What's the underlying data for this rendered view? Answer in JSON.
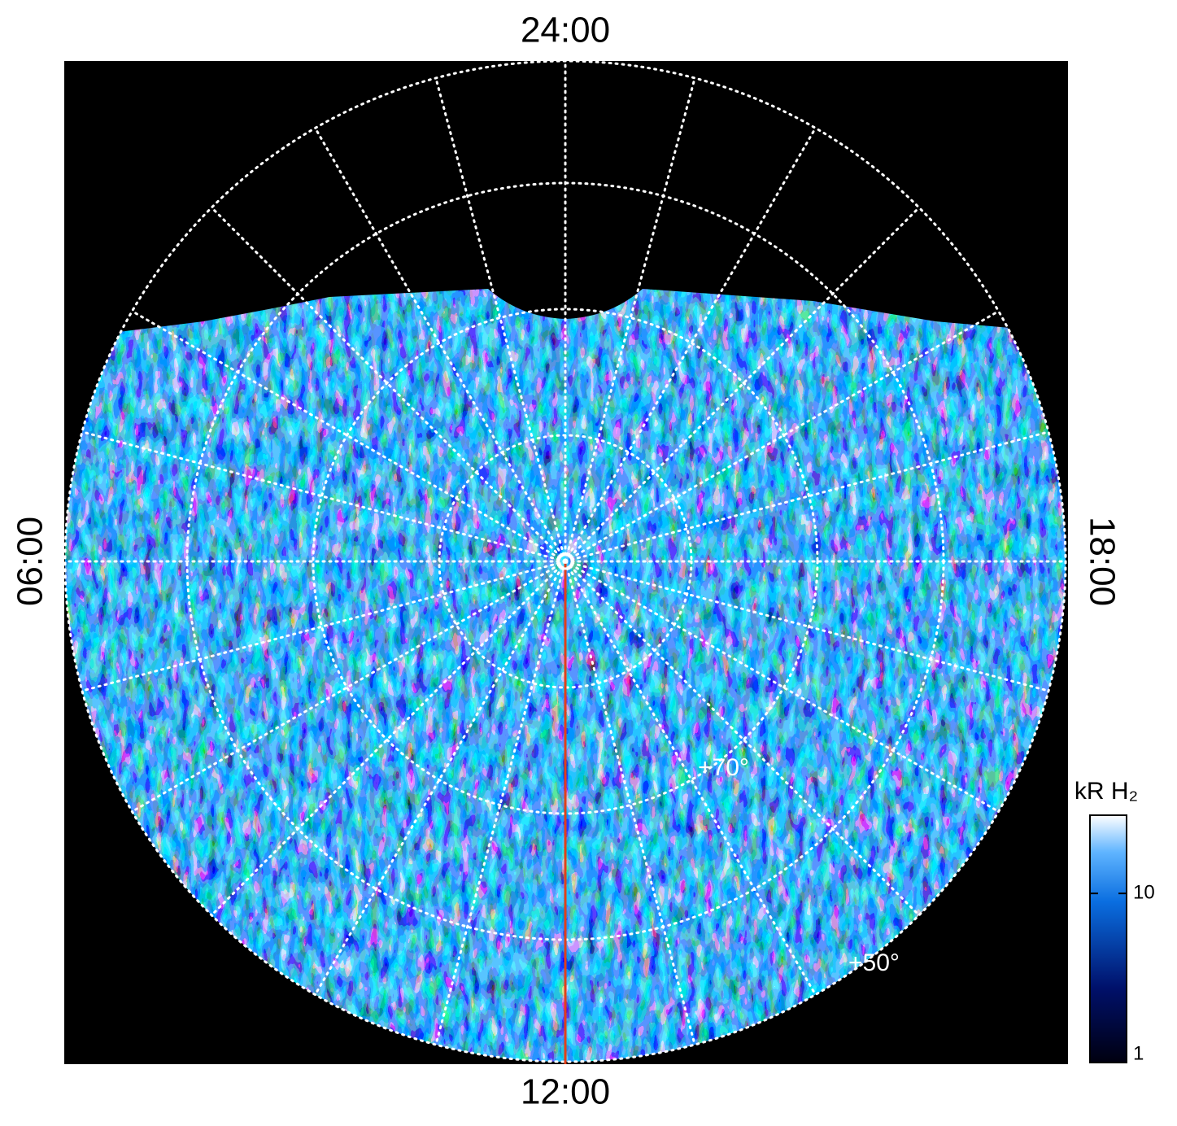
{
  "labels": {
    "top": "24:00",
    "bottom": "12:00",
    "left": "06:00",
    "right": "18:00",
    "lat_inner": "+70°",
    "lat_outer": "+50°"
  },
  "colorbar": {
    "title": "kR H₂",
    "scale": "log",
    "lim": [
      1,
      29
    ],
    "ticks": [
      1,
      10
    ]
  }
}
